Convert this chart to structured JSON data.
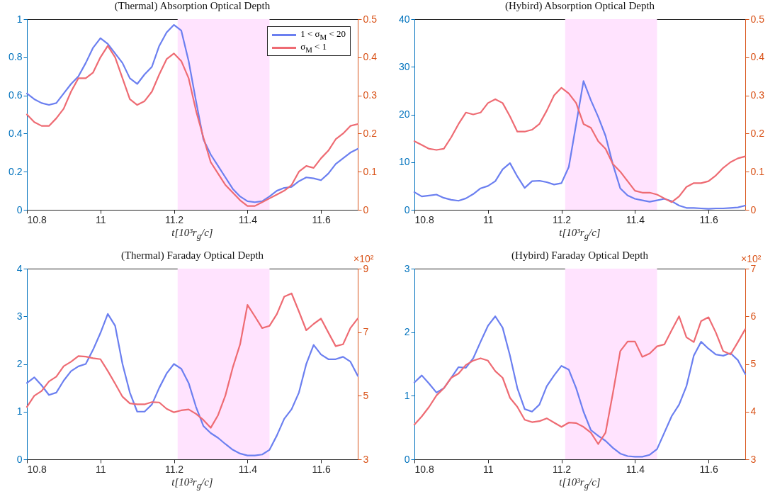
{
  "chart_data": [
    {
      "type": "line",
      "title": "(Thermal) Absorption Optical Depth",
      "xlabel": "t[10³r$_{g}$/c]",
      "x": [
        10.8,
        10.82,
        10.84,
        10.86,
        10.88,
        10.9,
        10.92,
        10.94,
        10.96,
        10.98,
        11.0,
        11.02,
        11.04,
        11.06,
        11.08,
        11.1,
        11.12,
        11.14,
        11.16,
        11.18,
        11.2,
        11.22,
        11.24,
        11.26,
        11.28,
        11.3,
        11.32,
        11.34,
        11.36,
        11.38,
        11.4,
        11.42,
        11.44,
        11.46,
        11.48,
        11.5,
        11.52,
        11.54,
        11.56,
        11.58,
        11.6,
        11.62,
        11.64,
        11.66,
        11.68,
        11.7
      ],
      "xlim": [
        10.8,
        11.7
      ],
      "xticks": [
        10.8,
        11,
        11.2,
        11.4,
        11.6
      ],
      "ylim": [
        0,
        1
      ],
      "yticks": [
        0,
        0.2,
        0.4,
        0.6,
        0.8,
        1
      ],
      "y2lim": [
        0,
        0.5
      ],
      "y2ticks": [
        0,
        0.1,
        0.2,
        0.3,
        0.4,
        0.5
      ],
      "legend": "top right",
      "bands": [
        {
          "axis": "x",
          "from": 11.21,
          "to": 11.46,
          "color": "#ffe3fe"
        }
      ],
      "series": [
        {
          "name": "1 < σ$_{M}$ < 20",
          "color": "#6b7ff0",
          "values": [
            0.61,
            0.58,
            0.56,
            0.55,
            0.56,
            0.61,
            0.66,
            0.7,
            0.77,
            0.85,
            0.9,
            0.87,
            0.82,
            0.77,
            0.69,
            0.66,
            0.71,
            0.75,
            0.86,
            0.93,
            0.97,
            0.94,
            0.78,
            0.57,
            0.37,
            0.29,
            0.23,
            0.17,
            0.11,
            0.07,
            0.045,
            0.04,
            0.045,
            0.07,
            0.1,
            0.115,
            0.12,
            0.15,
            0.17,
            0.165,
            0.155,
            0.19,
            0.24,
            0.27,
            0.3,
            0.32
          ]
        },
        {
          "name": "σ$_{M}$ < 1",
          "color": "#ee6b73",
          "axis": "y2",
          "values": [
            0.25,
            0.23,
            0.22,
            0.22,
            0.24,
            0.265,
            0.31,
            0.345,
            0.345,
            0.36,
            0.4,
            0.43,
            0.4,
            0.345,
            0.29,
            0.275,
            0.285,
            0.31,
            0.355,
            0.395,
            0.41,
            0.39,
            0.345,
            0.26,
            0.19,
            0.125,
            0.095,
            0.065,
            0.045,
            0.025,
            0.01,
            0.01,
            0.02,
            0.03,
            0.04,
            0.05,
            0.065,
            0.1,
            0.115,
            0.11,
            0.135,
            0.155,
            0.185,
            0.2,
            0.22,
            0.225
          ]
        }
      ]
    },
    {
      "type": "line",
      "title": "(Hybird) Absorption Optical Depth",
      "xlabel": "t[10³r$_{g}$/c]",
      "x": [
        10.8,
        10.82,
        10.84,
        10.86,
        10.88,
        10.9,
        10.92,
        10.94,
        10.96,
        10.98,
        11.0,
        11.02,
        11.04,
        11.06,
        11.08,
        11.1,
        11.12,
        11.14,
        11.16,
        11.18,
        11.2,
        11.22,
        11.24,
        11.26,
        11.28,
        11.3,
        11.32,
        11.34,
        11.36,
        11.38,
        11.4,
        11.42,
        11.44,
        11.46,
        11.48,
        11.5,
        11.52,
        11.54,
        11.56,
        11.58,
        11.6,
        11.62,
        11.64,
        11.66,
        11.68,
        11.7
      ],
      "xlim": [
        10.8,
        11.7
      ],
      "xticks": [
        10.8,
        11,
        11.2,
        11.4,
        11.6
      ],
      "ylim": [
        0,
        40
      ],
      "yticks": [
        0,
        10,
        20,
        30,
        40
      ],
      "y2lim": [
        0,
        0.5
      ],
      "y2ticks": [
        0,
        0.1,
        0.2,
        0.3,
        0.4,
        0.5
      ],
      "bands": [
        {
          "axis": "x",
          "from": 11.21,
          "to": 11.46,
          "color": "#ffe3fe"
        }
      ],
      "series": [
        {
          "color": "#6b7ff0",
          "values": [
            3.7,
            2.8,
            3.0,
            3.2,
            2.5,
            2.1,
            1.9,
            2.4,
            3.3,
            4.5,
            5.0,
            6.0,
            8.5,
            9.8,
            7.0,
            4.6,
            6.0,
            6.1,
            5.8,
            5.3,
            5.6,
            9.0,
            18.0,
            27.0,
            23.0,
            19.5,
            15.5,
            9.5,
            4.5,
            3.0,
            2.3,
            2.0,
            1.7,
            2.0,
            2.3,
            1.8,
            0.9,
            0.4,
            0.4,
            0.3,
            0.2,
            0.3,
            0.3,
            0.4,
            0.5,
            0.9
          ]
        },
        {
          "color": "#ee6b73",
          "axis": "y2",
          "values": [
            0.18,
            0.17,
            0.16,
            0.157,
            0.16,
            0.19,
            0.225,
            0.255,
            0.25,
            0.255,
            0.28,
            0.29,
            0.28,
            0.245,
            0.205,
            0.205,
            0.21,
            0.225,
            0.26,
            0.3,
            0.32,
            0.305,
            0.28,
            0.225,
            0.215,
            0.18,
            0.16,
            0.12,
            0.1,
            0.075,
            0.05,
            0.045,
            0.045,
            0.04,
            0.03,
            0.02,
            0.035,
            0.06,
            0.07,
            0.07,
            0.075,
            0.09,
            0.11,
            0.125,
            0.135,
            0.14
          ]
        }
      ]
    },
    {
      "type": "line",
      "title": "(Thermal) Faraday Optical Depth",
      "xlabel": "t[10³r$_{g}$/c]",
      "annotations": [
        "×10²"
      ],
      "x": [
        10.8,
        10.82,
        10.84,
        10.86,
        10.88,
        10.9,
        10.92,
        10.94,
        10.96,
        10.98,
        11.0,
        11.02,
        11.04,
        11.06,
        11.08,
        11.1,
        11.12,
        11.14,
        11.16,
        11.18,
        11.2,
        11.22,
        11.24,
        11.26,
        11.28,
        11.3,
        11.32,
        11.34,
        11.36,
        11.38,
        11.4,
        11.42,
        11.44,
        11.46,
        11.48,
        11.5,
        11.52,
        11.54,
        11.56,
        11.58,
        11.6,
        11.62,
        11.64,
        11.66,
        11.68,
        11.7
      ],
      "xlim": [
        10.8,
        11.7
      ],
      "xticks": [
        10.8,
        11,
        11.2,
        11.4,
        11.6
      ],
      "ylim": [
        0,
        4
      ],
      "yticks": [
        0,
        1,
        2,
        3,
        4
      ],
      "y2lim": [
        3,
        9
      ],
      "y2ticks": [
        3,
        5,
        7,
        9
      ],
      "bands": [
        {
          "axis": "x",
          "from": 11.21,
          "to": 11.46,
          "color": "#ffe3fe"
        }
      ],
      "series": [
        {
          "color": "#6b7ff0",
          "values": [
            1.6,
            1.72,
            1.55,
            1.35,
            1.4,
            1.65,
            1.85,
            1.95,
            2.0,
            2.3,
            2.65,
            3.05,
            2.8,
            2.0,
            1.4,
            1.0,
            1.0,
            1.15,
            1.5,
            1.8,
            2.0,
            1.9,
            1.6,
            1.1,
            0.7,
            0.55,
            0.45,
            0.32,
            0.2,
            0.12,
            0.08,
            0.08,
            0.1,
            0.2,
            0.5,
            0.85,
            1.05,
            1.4,
            2.0,
            2.4,
            2.2,
            2.1,
            2.1,
            2.15,
            2.05,
            1.75
          ]
        },
        {
          "color": "#ee6b73",
          "axis": "y2",
          "values": [
            4.65,
            5.0,
            5.15,
            5.45,
            5.6,
            5.93,
            6.07,
            6.25,
            6.23,
            6.18,
            6.15,
            5.78,
            5.38,
            4.97,
            4.76,
            4.73,
            4.73,
            4.8,
            4.79,
            4.59,
            4.48,
            4.54,
            4.57,
            4.43,
            4.24,
            3.99,
            4.39,
            5.01,
            5.89,
            6.62,
            7.86,
            7.5,
            7.13,
            7.2,
            7.57,
            8.12,
            8.22,
            7.65,
            7.06,
            7.26,
            7.43,
            6.99,
            6.56,
            6.62,
            7.13,
            7.43
          ]
        }
      ]
    },
    {
      "type": "line",
      "title": "(Hybird) Faraday Optical Depth",
      "xlabel": "t[10³r$_{g}$/c]",
      "annotations": [
        "×10²"
      ],
      "x": [
        10.8,
        10.82,
        10.84,
        10.86,
        10.88,
        10.9,
        10.92,
        10.94,
        10.96,
        10.98,
        11.0,
        11.02,
        11.04,
        11.06,
        11.08,
        11.1,
        11.12,
        11.14,
        11.16,
        11.18,
        11.2,
        11.22,
        11.24,
        11.26,
        11.28,
        11.3,
        11.32,
        11.34,
        11.36,
        11.38,
        11.4,
        11.42,
        11.44,
        11.46,
        11.48,
        11.5,
        11.52,
        11.54,
        11.56,
        11.58,
        11.6,
        11.62,
        11.64,
        11.66,
        11.68,
        11.7
      ],
      "xlim": [
        10.8,
        11.7
      ],
      "xticks": [
        10.8,
        11,
        11.2,
        11.4,
        11.6
      ],
      "ylim": [
        0,
        3
      ],
      "yticks": [
        0,
        1,
        2,
        3
      ],
      "y2lim": [
        3,
        7
      ],
      "y2ticks": [
        3,
        4,
        5,
        6,
        7
      ],
      "bands": [
        {
          "axis": "x",
          "from": 11.21,
          "to": 11.46,
          "color": "#ffe3fe"
        }
      ],
      "series": [
        {
          "color": "#6b7ff0",
          "values": [
            1.21,
            1.32,
            1.19,
            1.05,
            1.12,
            1.28,
            1.45,
            1.44,
            1.59,
            1.85,
            2.1,
            2.25,
            2.07,
            1.63,
            1.12,
            0.79,
            0.75,
            0.86,
            1.15,
            1.32,
            1.47,
            1.41,
            1.12,
            0.75,
            0.46,
            0.37,
            0.29,
            0.18,
            0.09,
            0.05,
            0.04,
            0.04,
            0.07,
            0.16,
            0.42,
            0.68,
            0.86,
            1.15,
            1.63,
            1.85,
            1.74,
            1.65,
            1.63,
            1.67,
            1.56,
            1.34
          ]
        },
        {
          "color": "#ee6b73",
          "axis": "y2",
          "values": [
            3.73,
            3.9,
            4.1,
            4.34,
            4.49,
            4.71,
            4.8,
            4.98,
            5.07,
            5.12,
            5.07,
            4.85,
            4.71,
            4.29,
            4.1,
            3.83,
            3.78,
            3.8,
            3.86,
            3.77,
            3.68,
            3.77,
            3.76,
            3.68,
            3.56,
            3.32,
            3.56,
            4.39,
            5.27,
            5.47,
            5.47,
            5.15,
            5.22,
            5.37,
            5.41,
            5.71,
            6.0,
            5.56,
            5.46,
            5.9,
            5.98,
            5.66,
            5.27,
            5.2,
            5.46,
            5.73
          ]
        }
      ]
    }
  ]
}
